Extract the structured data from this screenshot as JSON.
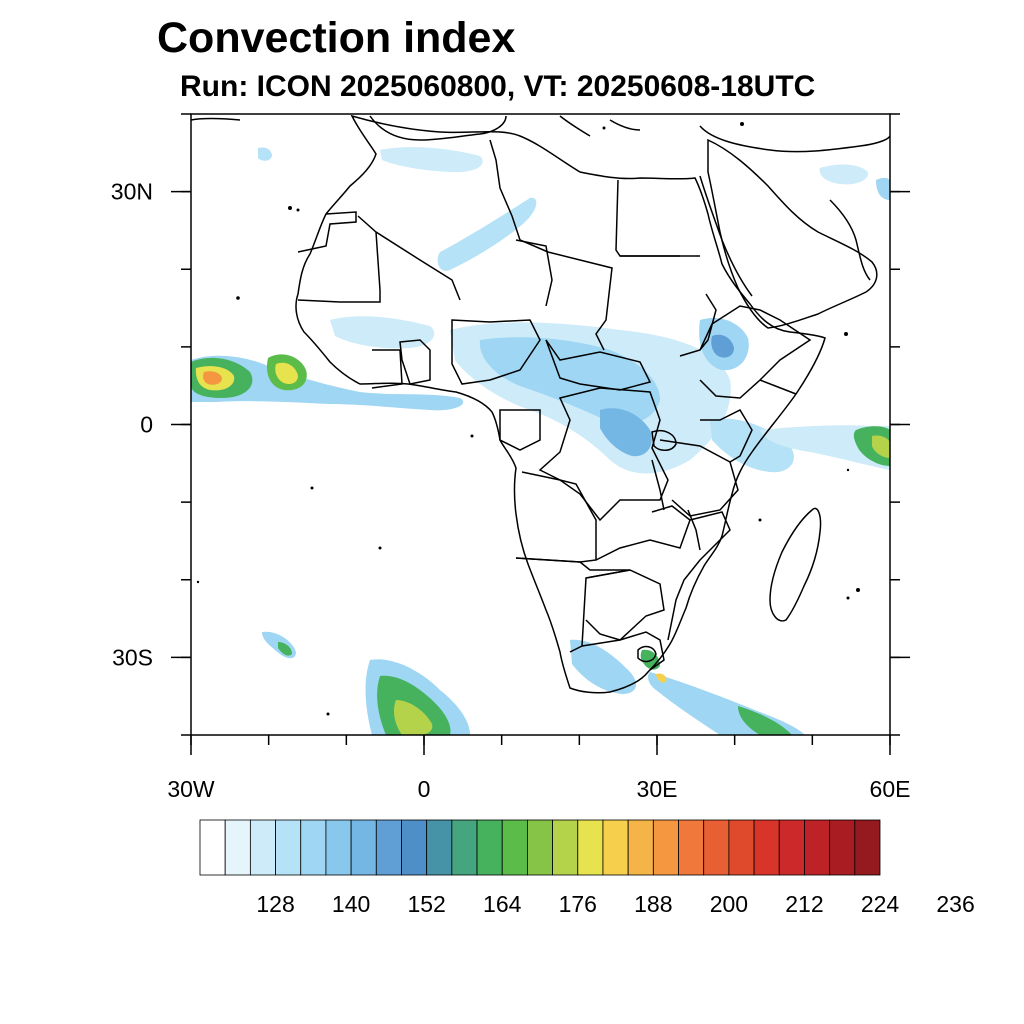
{
  "title": "Convection index",
  "subtitle": "Run: ICON 2025060800,  VT: 20250608-18UTC",
  "map": {
    "region": "Africa",
    "lon_range": [
      -30,
      60
    ],
    "lat_range": [
      -40,
      40
    ],
    "lat_ticks": [
      {
        "value": 30,
        "label": "30N"
      },
      {
        "value": 0,
        "label": "0"
      },
      {
        "value": -30,
        "label": "30S"
      }
    ],
    "lon_ticks": [
      {
        "value": -30,
        "label": "30W"
      },
      {
        "value": 0,
        "label": "0"
      },
      {
        "value": 30,
        "label": "30E"
      },
      {
        "value": 60,
        "label": "60E"
      }
    ]
  },
  "colorbar": {
    "labels": [
      "128",
      "140",
      "152",
      "164",
      "176",
      "188",
      "200",
      "212",
      "224",
      "236"
    ],
    "colors": [
      "#ffffff",
      "#e6f5fc",
      "#cdebf8",
      "#b5e2f6",
      "#9ed6f3",
      "#88c8ec",
      "#74b6e4",
      "#5f9fd6",
      "#4f8fc9",
      "#4693a8",
      "#44a57f",
      "#46b25e",
      "#5cbc49",
      "#86c448",
      "#b4d24a",
      "#e7e34f",
      "#f6cf4d",
      "#f5b447",
      "#f59741",
      "#f1783b",
      "#e85f34",
      "#df4a2d",
      "#d93429",
      "#cc2a2a",
      "#bd2226",
      "#a81c22",
      "#941a1f"
    ]
  }
}
